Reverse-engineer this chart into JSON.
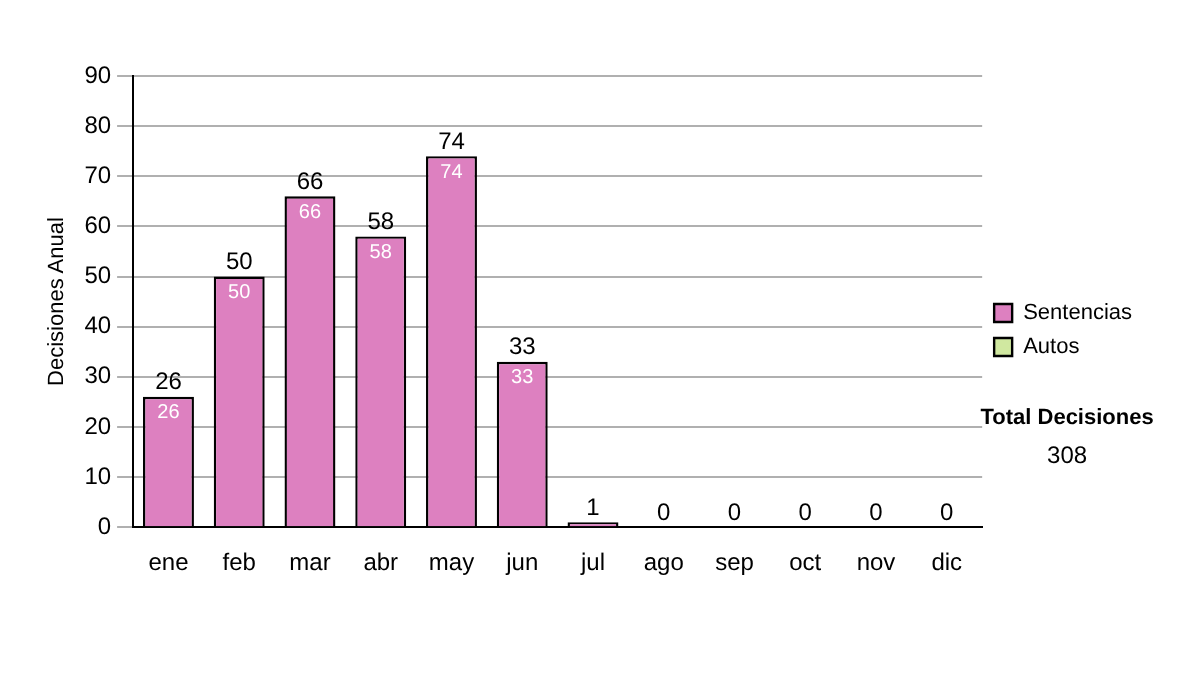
{
  "chart_data": {
    "type": "bar",
    "stacked": true,
    "ylabel": "Decisiones Anual",
    "categories": [
      "ene",
      "feb",
      "mar",
      "abr",
      "may",
      "jun",
      "jul",
      "ago",
      "sep",
      "oct",
      "nov",
      "dic"
    ],
    "series": [
      {
        "name": "Sentencias",
        "color": "#dd80c0",
        "values": [
          26,
          50,
          66,
          58,
          74,
          33,
          1,
          0,
          0,
          0,
          0,
          0
        ],
        "value_labels": [
          "26",
          "50",
          "66",
          "58",
          "74",
          "33",
          null,
          null,
          null,
          null,
          null,
          null
        ]
      },
      {
        "name": "Autos",
        "color": "#d0e8a0",
        "values": [
          0,
          0,
          0,
          0,
          0,
          0,
          0,
          0,
          0,
          0,
          0,
          0
        ]
      }
    ],
    "totals": [
      "26",
      "50",
      "66",
      "58",
      "74",
      "33",
      "1",
      "0",
      "0",
      "0",
      "0",
      "0"
    ],
    "ylim": [
      0,
      90
    ],
    "yticks": [
      0,
      10,
      20,
      30,
      40,
      50,
      60,
      70,
      80,
      90
    ],
    "grid": "y",
    "legend": "right",
    "annotations": [
      "Total Decisiones",
      "308"
    ]
  }
}
